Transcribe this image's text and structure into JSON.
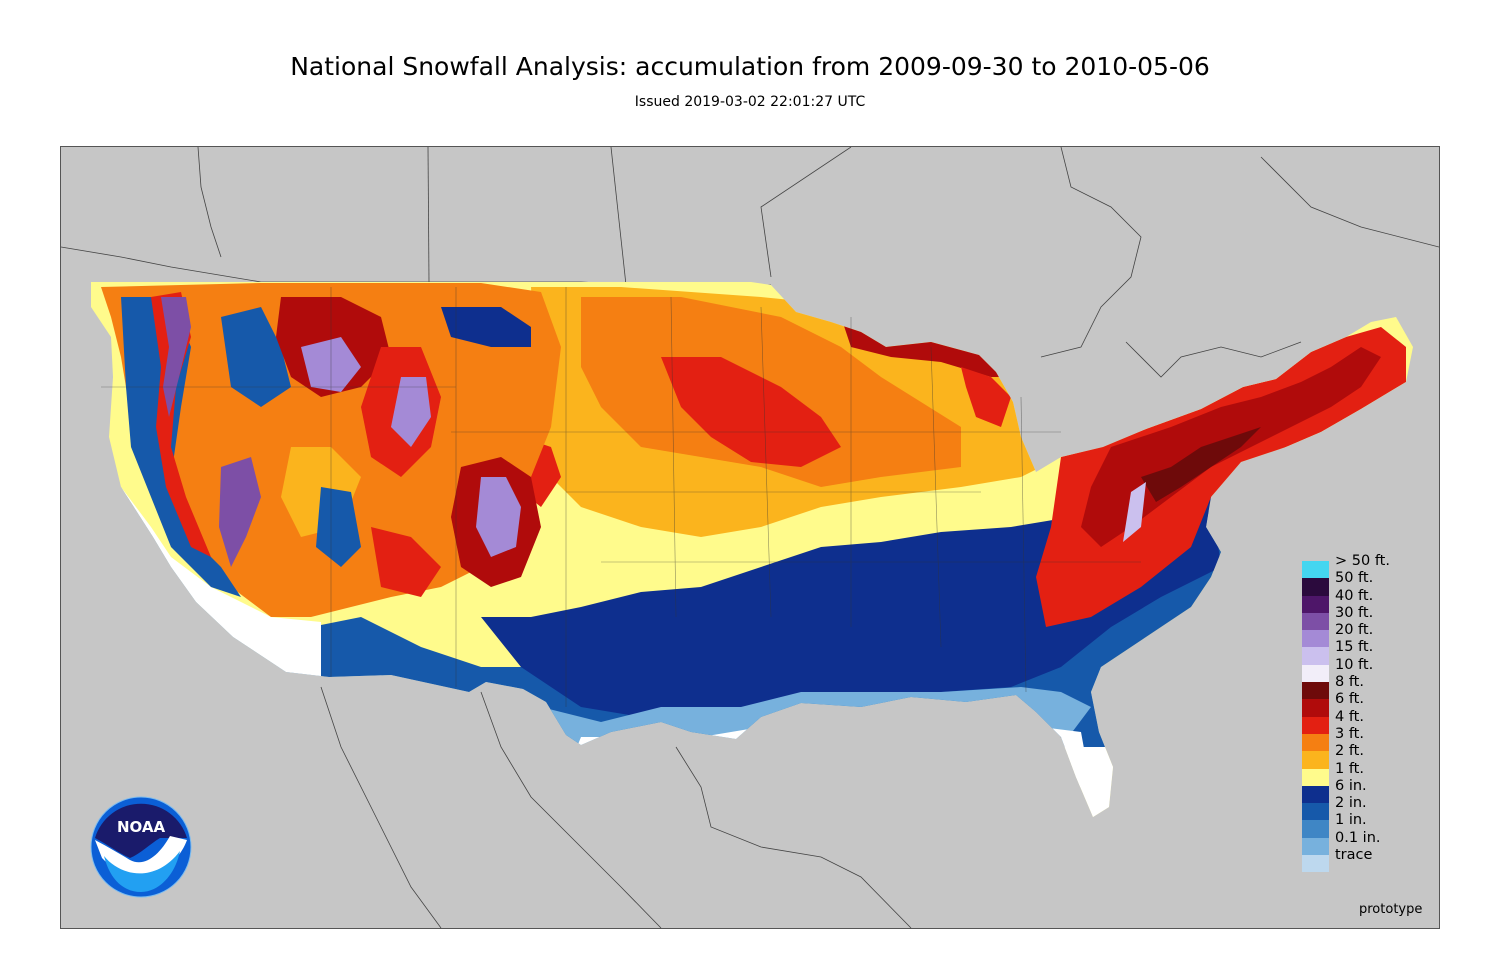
{
  "title": "National Snowfall Analysis: accumulation from 2009-09-30 to 2010-05-06",
  "subtitle": "Issued 2019-03-02 22:01:27 UTC",
  "footer_note": "prototype",
  "logo": {
    "text": "NOAA"
  },
  "colors": {
    "background_land": "#c6c6c6",
    "water": "#c6c6c6",
    "border_lines": "#444444"
  },
  "legend": [
    {
      "label": "> 50 ft.",
      "color": "#44d6f0"
    },
    {
      "label": "50 ft.",
      "color": "#2b0a3d"
    },
    {
      "label": "40 ft.",
      "color": "#4e1669"
    },
    {
      "label": "30 ft.",
      "color": "#7d4fa6"
    },
    {
      "label": "20 ft.",
      "color": "#a48ad6"
    },
    {
      "label": "15 ft.",
      "color": "#cbc0ee"
    },
    {
      "label": "10 ft.",
      "color": "#f2eef9"
    },
    {
      "label": "8 ft.",
      "color": "#6e0a0a"
    },
    {
      "label": "6 ft.",
      "color": "#b00b0b"
    },
    {
      "label": "4 ft.",
      "color": "#e32012"
    },
    {
      "label": "3 ft.",
      "color": "#f57f12"
    },
    {
      "label": "2 ft.",
      "color": "#fbb41d"
    },
    {
      "label": "1 ft.",
      "color": "#fffb8c"
    },
    {
      "label": "6 in.",
      "color": "#0e2f8e"
    },
    {
      "label": "2 in.",
      "color": "#1659aa"
    },
    {
      "label": "1 in.",
      "color": "#3f86c5"
    },
    {
      "label": "0.1 in.",
      "color": "#77b1dd"
    },
    {
      "label": "trace",
      "color": "#bdd8ee"
    }
  ]
}
